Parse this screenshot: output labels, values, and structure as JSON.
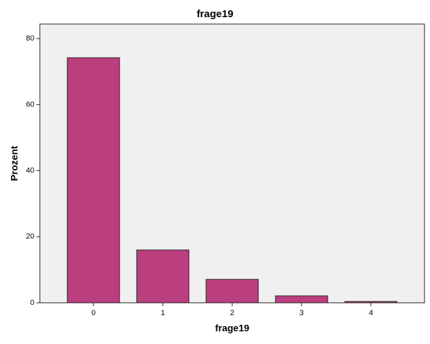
{
  "chart_data": {
    "type": "bar",
    "title": "frage19",
    "x_label": "frage19",
    "y_label": "Prozent",
    "categories": [
      "0",
      "1",
      "2",
      "3",
      "4"
    ],
    "values": [
      74.2,
      16.0,
      7.1,
      2.1,
      0.4
    ],
    "color": "#bb3f7e",
    "ylim": [
      0,
      84.4
    ],
    "yticks": [
      0,
      20,
      40,
      60,
      80
    ],
    "grid": false
  }
}
